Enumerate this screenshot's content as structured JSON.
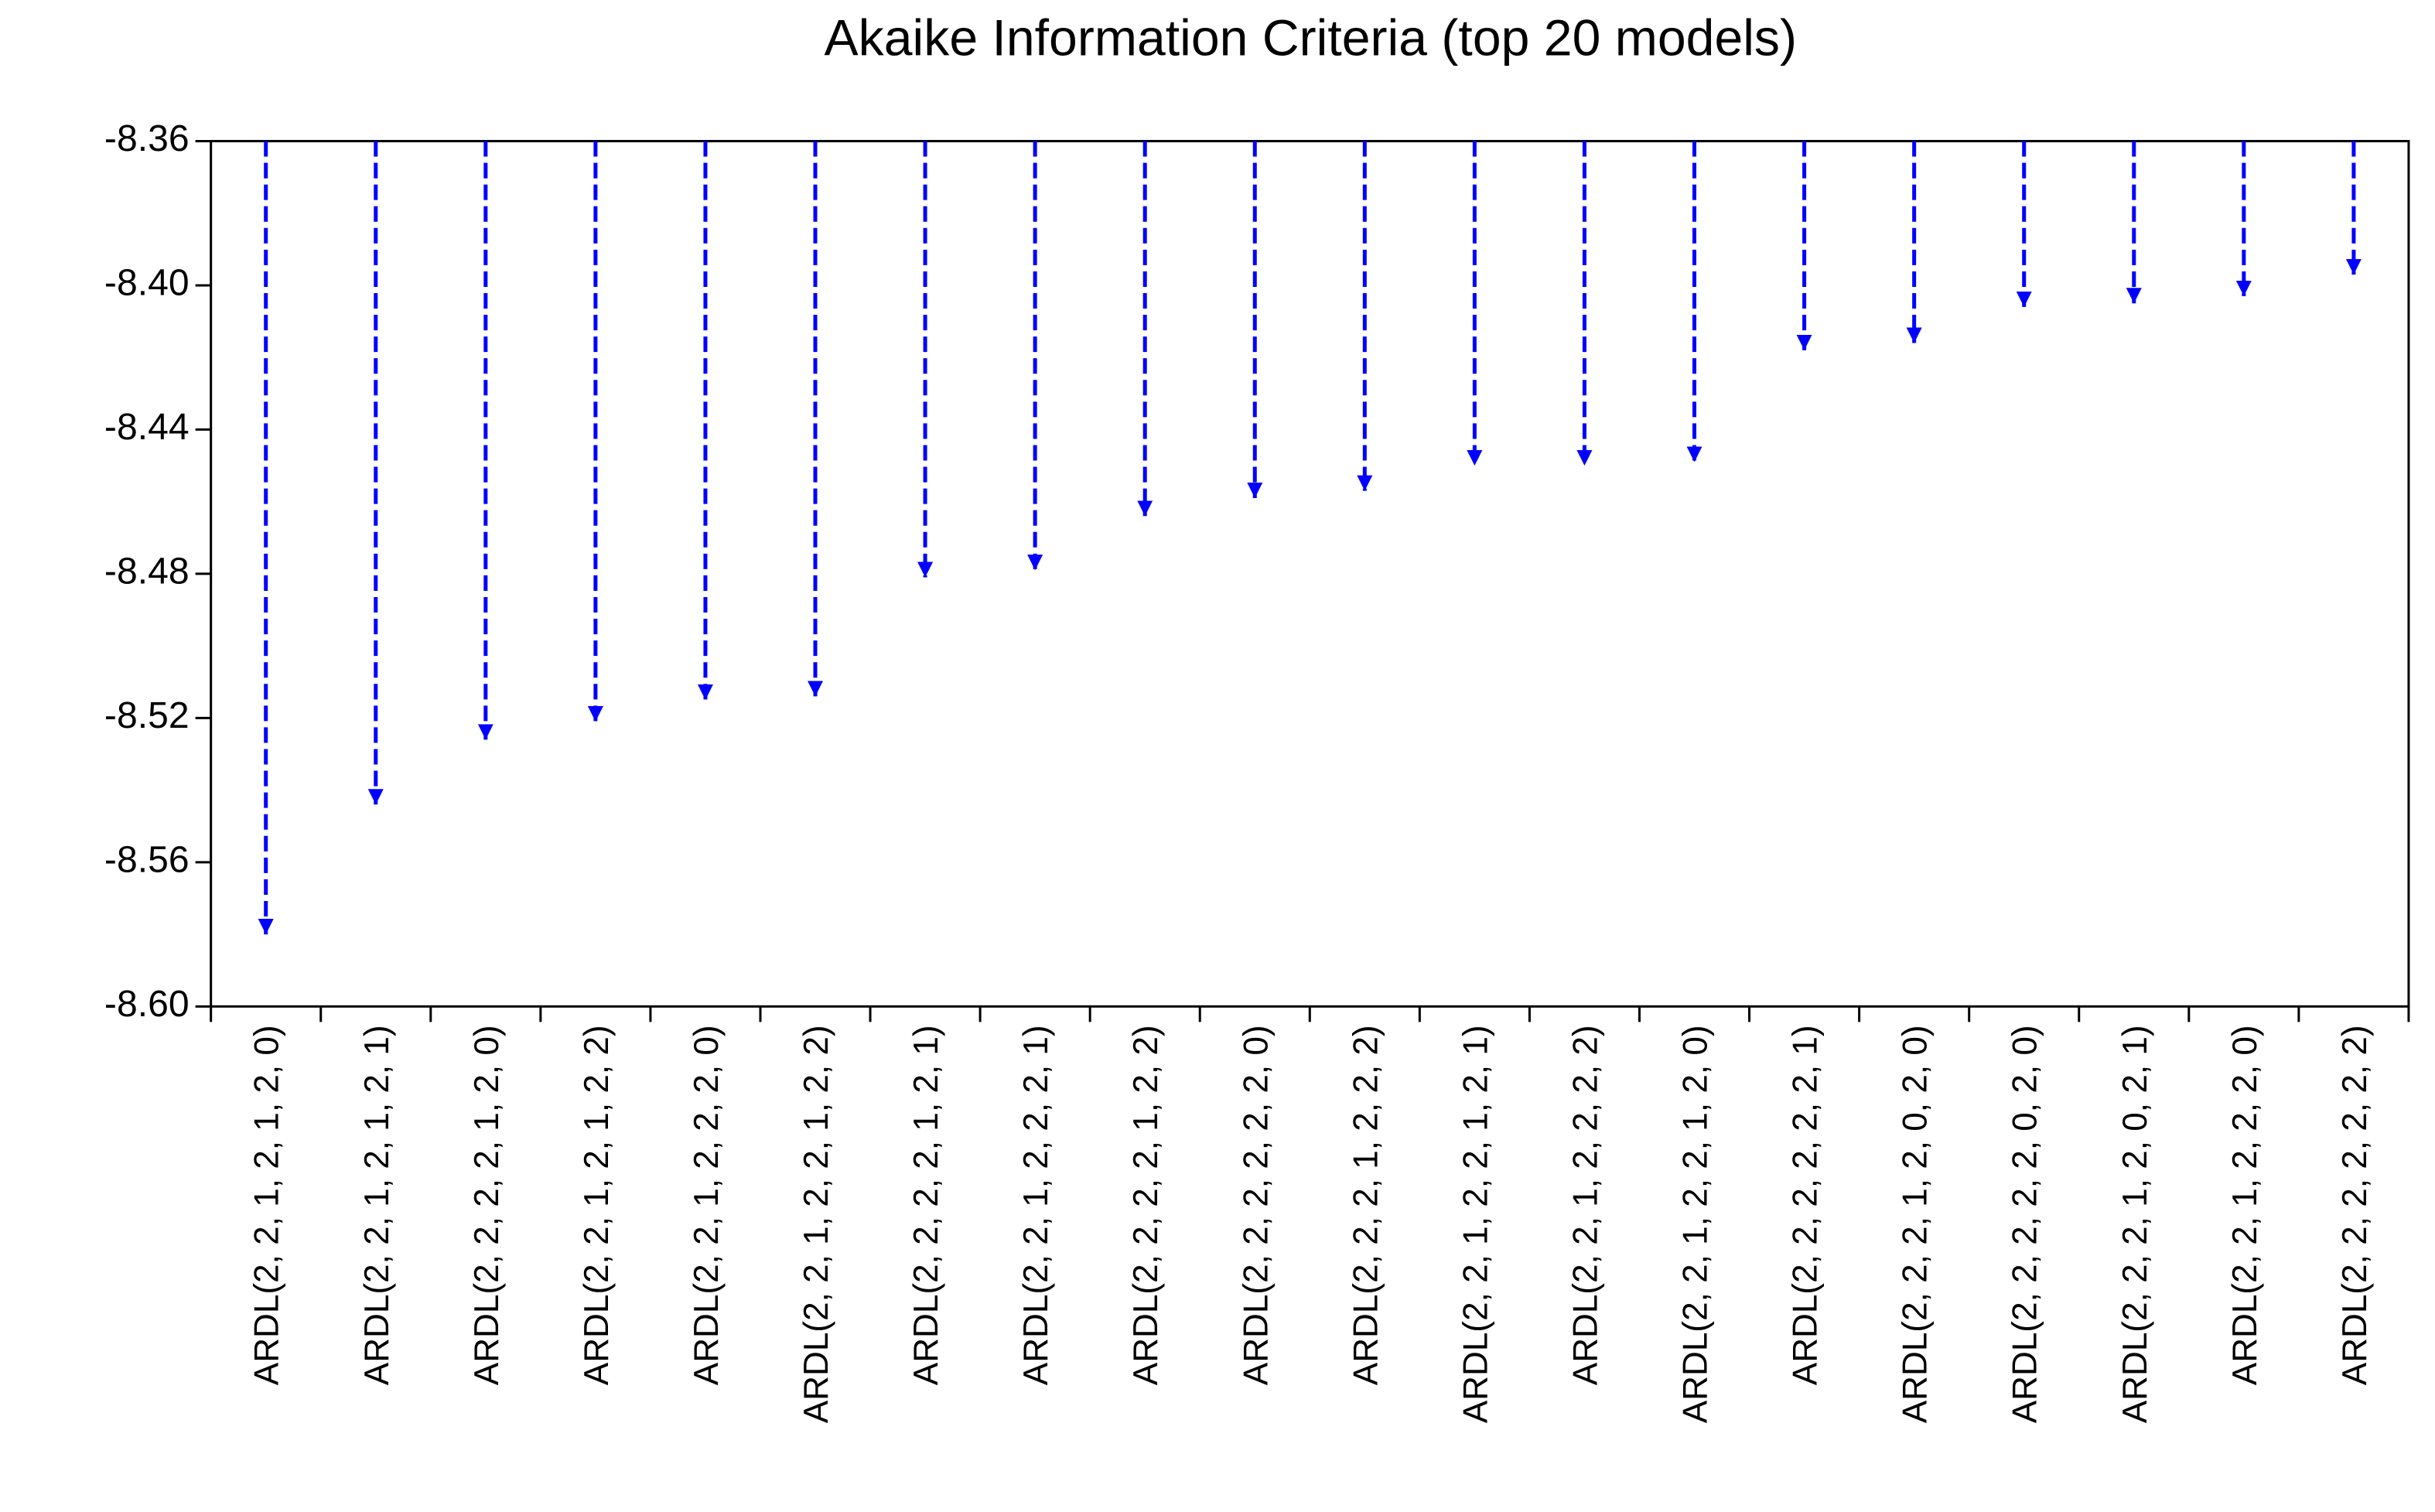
{
  "chart_data": {
    "type": "dropline",
    "title": "Akaike Information Criteria (top 20 models)",
    "categories": [
      "ARDL(2, 2, 1, 2, 1, 2, 0)",
      "ARDL(2, 2, 1, 2, 1, 2, 1)",
      "ARDL(2, 2, 2, 2, 1, 2, 0)",
      "ARDL(2, 2, 1, 2, 1, 2, 2)",
      "ARDL(2, 2, 1, 2, 2, 2, 0)",
      "ARDL(2, 2, 1, 2, 2, 1, 2, 2)",
      "ARDL(2, 2, 2, 2, 1, 2, 1)",
      "ARDL(2, 2, 1, 2, 2, 2, 1)",
      "ARDL(2, 2, 2, 2, 1, 2, 2)",
      "ARDL(2, 2, 2, 2, 2, 2, 0)",
      "ARDL(2, 2, 2, 1, 2, 2, 2)",
      "ARDL(2, 2, 1, 2, 2, 1, 2, 1)",
      "ARDL(2, 2, 1, 2, 2, 2, 2)",
      "ARDL(2, 2, 1, 2, 2, 1, 2, 0)",
      "ARDL(2, 2, 2, 2, 2, 2, 1)",
      "ARDL(2, 2, 2, 1, 2, 0, 2, 0)",
      "ARDL(2, 2, 2, 2, 2, 0, 2, 0)",
      "ARDL(2, 2, 2, 1, 2, 0, 2, 1)",
      "ARDL(2, 2, 1, 2, 2, 2, 0)",
      "ARDL(2, 2, 2, 2, 2, 2, 2)"
    ],
    "values": [
      -8.58,
      -8.544,
      -8.526,
      -8.521,
      -8.515,
      -8.514,
      -8.481,
      -8.479,
      -8.464,
      -8.459,
      -8.457,
      -8.45,
      -8.45,
      -8.449,
      -8.418,
      -8.416,
      -8.406,
      -8.405,
      -8.403,
      -8.397
    ],
    "color": "#0000ff",
    "ylim": [
      -8.36,
      -8.6
    ],
    "yticks": [
      -8.36,
      {
        "value": -8.4,
        "label": "-8.40"
      },
      -8.44,
      -8.48,
      -8.52,
      -8.56,
      {
        "value": -8.6,
        "label": "-8.60"
      }
    ]
  }
}
